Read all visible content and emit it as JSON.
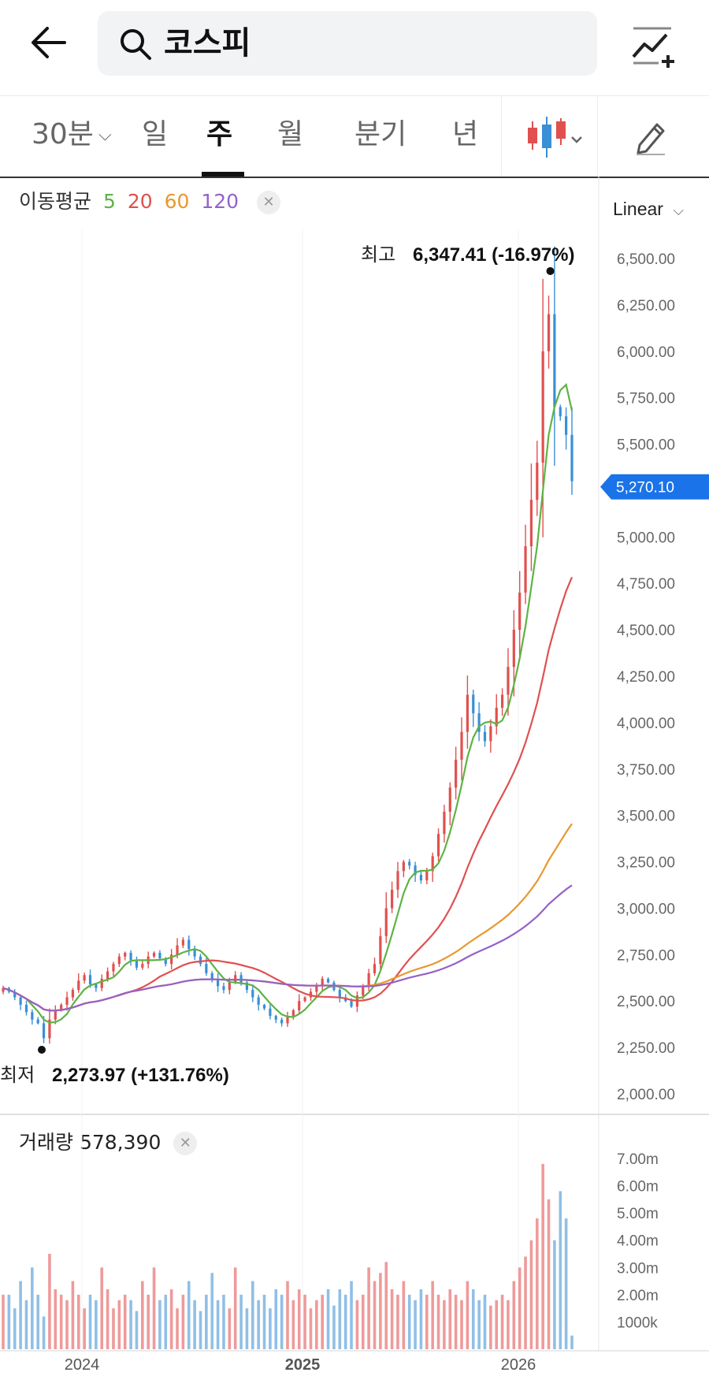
{
  "search": {
    "query": "코스피"
  },
  "tabs": [
    {
      "label": "30분",
      "active": false
    },
    {
      "label": "일",
      "active": false
    },
    {
      "label": "주",
      "active": true
    },
    {
      "label": "월",
      "active": false
    },
    {
      "label": "분기",
      "active": false
    },
    {
      "label": "년",
      "active": false
    }
  ],
  "icons": {
    "back": "back-arrow-icon",
    "search": "search-icon",
    "compare": "compare-chart-icon",
    "candle": "candle-type-icon",
    "draw": "pencil-icon"
  },
  "legend": {
    "title": "이동평균",
    "ma": [
      {
        "period": "5",
        "color": "#5db344"
      },
      {
        "period": "20",
        "color": "#e0504f"
      },
      {
        "period": "60",
        "color": "#e8982e"
      },
      {
        "period": "120",
        "color": "#9561c8"
      }
    ]
  },
  "scale_mode": "Linear",
  "volume": {
    "title": "거래량",
    "value": "578,390"
  },
  "chart_data": {
    "type": "candlestick",
    "x_axis": {
      "ticks": [
        "2024",
        "2025",
        "2026"
      ]
    },
    "y_axis": {
      "ticks": [
        "6,500.00",
        "6,250.00",
        "6,000.00",
        "5,750.00",
        "5,500.00",
        "5,250.00",
        "5,000.00",
        "4,750.00",
        "4,500.00",
        "4,250.00",
        "4,000.00",
        "3,750.00",
        "3,500.00",
        "3,250.00",
        "3,000.00",
        "2,750.00",
        "2,500.00",
        "2,250.00",
        "2,000.00"
      ],
      "range": [
        2000,
        6500
      ]
    },
    "current_price": {
      "label": "5,270.10",
      "value": 5270.1,
      "color": "#1a73e8"
    },
    "high_marker": {
      "label": "최고",
      "value_text": "6,347.41 (-16.97%)",
      "value": 6347.41
    },
    "low_marker": {
      "label": "최저",
      "value_text": "2,273.97 (+131.76%)",
      "value": 2273.97
    },
    "colors": {
      "up": "#e0504f",
      "down": "#3a8fd6",
      "ma5": "#5db344",
      "ma20": "#e0504f",
      "ma60": "#e8982e",
      "ma120": "#9561c8"
    },
    "weekly_close": [
      2570,
      2550,
      2520,
      2480,
      2440,
      2400,
      2380,
      2300,
      2400,
      2450,
      2480,
      2520,
      2560,
      2610,
      2640,
      2590,
      2570,
      2620,
      2660,
      2700,
      2740,
      2760,
      2720,
      2680,
      2700,
      2740,
      2760,
      2730,
      2700,
      2750,
      2800,
      2830,
      2780,
      2740,
      2700,
      2650,
      2620,
      2580,
      2560,
      2600,
      2640,
      2600,
      2560,
      2520,
      2480,
      2460,
      2420,
      2400,
      2380,
      2420,
      2450,
      2500,
      2520,
      2550,
      2580,
      2620,
      2600,
      2560,
      2520,
      2500,
      2470,
      2530,
      2580,
      2650,
      2700,
      2850,
      3000,
      3100,
      3200,
      3250,
      3230,
      3180,
      3150,
      3200,
      3280,
      3400,
      3520,
      3650,
      3800,
      3950,
      4150,
      4050,
      3950,
      3900,
      3980,
      4080,
      4150,
      4300,
      4500,
      4700,
      4950,
      5200,
      5400,
      6000,
      6200,
      5700,
      5650,
      5550,
      5300
    ],
    "volume_axis": {
      "ticks": [
        "7.00m",
        "6.00m",
        "5.00m",
        "4.00m",
        "3.00m",
        "2.00m",
        "1000k"
      ],
      "range": [
        0,
        7000000
      ]
    },
    "weekly_volume": [
      2.0,
      2.0,
      1.5,
      2.5,
      1.8,
      3.0,
      2.0,
      1.2,
      3.5,
      2.2,
      2.0,
      1.8,
      2.5,
      2.0,
      1.5,
      2.0,
      1.8,
      3.0,
      2.2,
      1.5,
      1.8,
      2.0,
      1.8,
      1.4,
      2.5,
      2.0,
      3.0,
      1.8,
      2.0,
      2.2,
      1.5,
      2.0,
      2.5,
      1.8,
      1.4,
      2.0,
      2.8,
      1.8,
      2.0,
      1.5,
      3.0,
      2.0,
      1.5,
      2.5,
      1.8,
      2.0,
      1.5,
      2.2,
      2.0,
      2.5,
      1.8,
      2.2,
      2.0,
      1.5,
      1.8,
      2.0,
      2.2,
      1.6,
      2.2,
      2.0,
      2.5,
      1.8,
      2.0,
      3.0,
      2.5,
      2.8,
      3.2,
      2.2,
      2.0,
      2.5,
      2.0,
      1.8,
      2.2,
      2.0,
      2.5,
      2.0,
      1.8,
      2.2,
      2.0,
      1.8,
      2.5,
      2.2,
      1.8,
      2.0,
      1.6,
      1.8,
      2.0,
      1.8,
      2.5,
      3.0,
      3.4,
      4.0,
      4.8,
      6.8,
      5.5,
      4.0,
      5.8,
      4.8,
      0.5
    ]
  }
}
